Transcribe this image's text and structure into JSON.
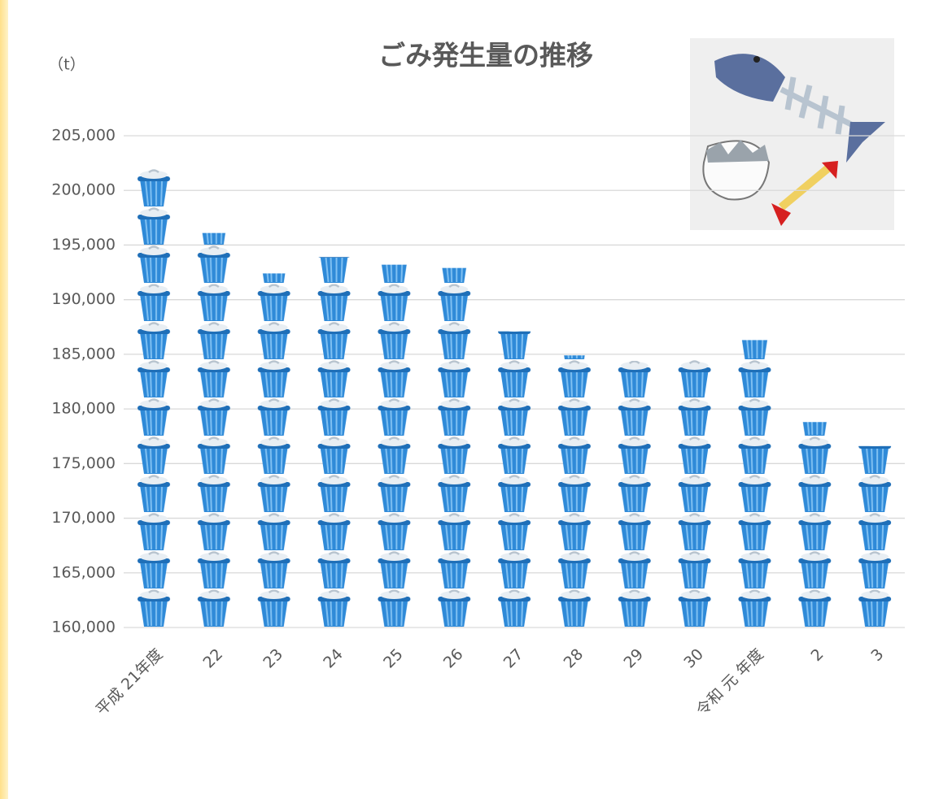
{
  "chart_data": {
    "type": "bar",
    "title": "ごみ発生量の推移",
    "y_label": "（t）",
    "categories": [
      "平成 21年度",
      "22",
      "23",
      "24",
      "25",
      "26",
      "27",
      "28",
      "29",
      "30",
      "令和 元 年度",
      "2",
      "3"
    ],
    "values": [
      202000,
      196100,
      192400,
      193900,
      193200,
      192900,
      187100,
      184900,
      184400,
      184500,
      186300,
      178800,
      176600
    ],
    "color": "#2f8ad8",
    "ylim": [
      160000,
      205000
    ],
    "yticks": [
      {
        "value": 160000,
        "label": "160,000"
      },
      {
        "value": 165000,
        "label": "165,000"
      },
      {
        "value": 170000,
        "label": "170,000"
      },
      {
        "value": 175000,
        "label": "175,000"
      },
      {
        "value": 180000,
        "label": "180,000"
      },
      {
        "value": 185000,
        "label": "185,000"
      },
      {
        "value": 190000,
        "label": "190,000"
      },
      {
        "value": 195000,
        "label": "195,000"
      },
      {
        "value": 200000,
        "label": "200,000"
      },
      {
        "value": 205000,
        "label": "205,000"
      }
    ],
    "grid": true
  }
}
